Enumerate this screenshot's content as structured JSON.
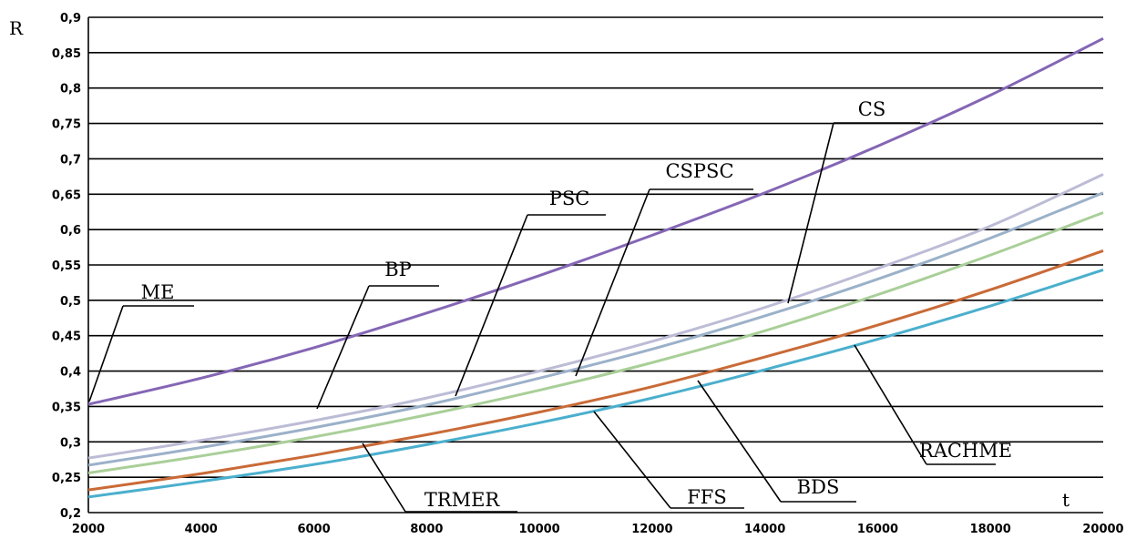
{
  "chart_data": {
    "type": "line",
    "xlabel": "t",
    "ylabel": "R",
    "xlim": [
      2000,
      20000
    ],
    "ylim": [
      0.2,
      0.9
    ],
    "x_ticks": [
      "2000",
      "4000",
      "6000",
      "8000",
      "10000",
      "12000",
      "14000",
      "16000",
      "18000",
      "20000"
    ],
    "y_ticks": [
      "0,2",
      "0,25",
      "0,3",
      "0,35",
      "0,4",
      "0,45",
      "0,5",
      "0,55",
      "0,6",
      "0,65",
      "0,7",
      "0,75",
      "0,8",
      "0,85",
      "0,9"
    ],
    "grid": "horizontal",
    "x": [
      2000,
      4000,
      6000,
      8000,
      10000,
      12000,
      14000,
      16000,
      18000,
      20000
    ],
    "series": [
      {
        "name": "CS",
        "color": "#8466b5",
        "values": [
          0.353,
          0.39,
          0.433,
          0.482,
          0.535,
          0.592,
          0.652,
          0.718,
          0.79,
          0.87
        ]
      },
      {
        "name": "PSC",
        "color": "#bcbcd6",
        "values": [
          0.277,
          0.302,
          0.33,
          0.362,
          0.4,
          0.442,
          0.49,
          0.545,
          0.605,
          0.678
        ]
      },
      {
        "name": "CSPSC",
        "color": "#9bb1c9",
        "values": [
          0.267,
          0.292,
          0.32,
          0.352,
          0.39,
          0.431,
          0.478,
          0.53,
          0.588,
          0.652
        ]
      },
      {
        "name": "BP",
        "color": "#a9cf98",
        "values": [
          0.256,
          0.28,
          0.307,
          0.338,
          0.373,
          0.412,
          0.457,
          0.508,
          0.564,
          0.624
        ]
      },
      {
        "name": "BDS",
        "color": "#c96a37",
        "values": [
          0.232,
          0.255,
          0.281,
          0.31,
          0.342,
          0.378,
          0.42,
          0.465,
          0.515,
          0.57
        ]
      },
      {
        "name": "RACHME",
        "color": "#4bafcd",
        "values": [
          0.222,
          0.244,
          0.268,
          0.296,
          0.327,
          0.362,
          0.402,
          0.445,
          0.492,
          0.543
        ]
      }
    ],
    "annotations": [
      {
        "label": "CS",
        "series": "CS"
      },
      {
        "label": "CSPSC",
        "series": "CSPSC"
      },
      {
        "label": "PSC",
        "series": "PSC"
      },
      {
        "label": "BP",
        "series": "BP"
      },
      {
        "label": "ME",
        "series": "CS"
      },
      {
        "label": "TRMER",
        "series": "BDS"
      },
      {
        "label": "FFS",
        "series": "RACHME"
      },
      {
        "label": "BDS",
        "series": "BDS"
      },
      {
        "label": "RACHME",
        "series": "RACHME"
      }
    ]
  }
}
